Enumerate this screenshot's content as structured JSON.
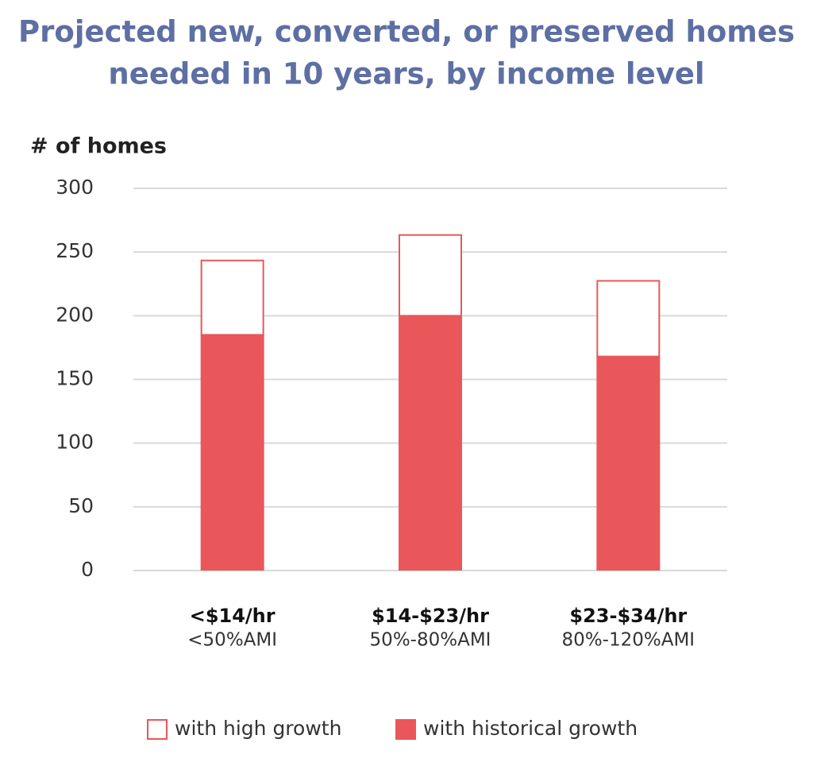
{
  "chart_data": {
    "type": "stacked_bar",
    "title": [
      "Projected new, converted, or preserved homes",
      "needed in 10 years, by income level"
    ],
    "y_label": "# of homes",
    "categories": [
      "<$14/hr",
      "$14-$23/hr",
      "$23-$34/hr"
    ],
    "category_sublabels": [
      "<50%AMI",
      "50%-80%AMI",
      "80%-120%AMI"
    ],
    "series": [
      {
        "name": "with historical growth",
        "color": "#e9575a",
        "style": "filled",
        "values": [
          185,
          200,
          168
        ]
      },
      {
        "name": "with high growth",
        "color": "#e9575a",
        "style": "outline",
        "values": [
          59,
          64,
          60
        ]
      }
    ],
    "legend_reversed": true,
    "ylim": [
      0,
      300
    ],
    "yticks": [
      0,
      50,
      100,
      150,
      200,
      250,
      300
    ],
    "grid": true
  }
}
